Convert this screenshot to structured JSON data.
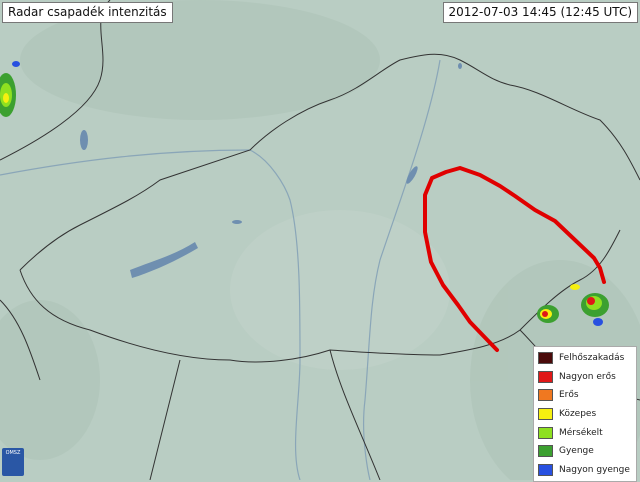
{
  "title": "Radar csapadék intenzitás",
  "timestamp": "2012-07-03 14:45 (12:45 UTC)",
  "legend": [
    {
      "label": "Felhőszakadás",
      "color": "#4a0a0a"
    },
    {
      "label": "Nagyon erős",
      "color": "#e01818"
    },
    {
      "label": "Erős",
      "color": "#f07820"
    },
    {
      "label": "Közepes",
      "color": "#f6f010"
    },
    {
      "label": "Mérsékelt",
      "color": "#8ee020"
    },
    {
      "label": "Gyenge",
      "color": "#3ca030"
    },
    {
      "label": "Nagyon gyenge",
      "color": "#2850e0"
    }
  ],
  "logo": "OMSZ",
  "annotation_color": "#e00000",
  "map_colors": {
    "land": "#b9cdc3",
    "border": "#333333",
    "water": "#6f8fb0",
    "river": "#8aa6b8"
  }
}
